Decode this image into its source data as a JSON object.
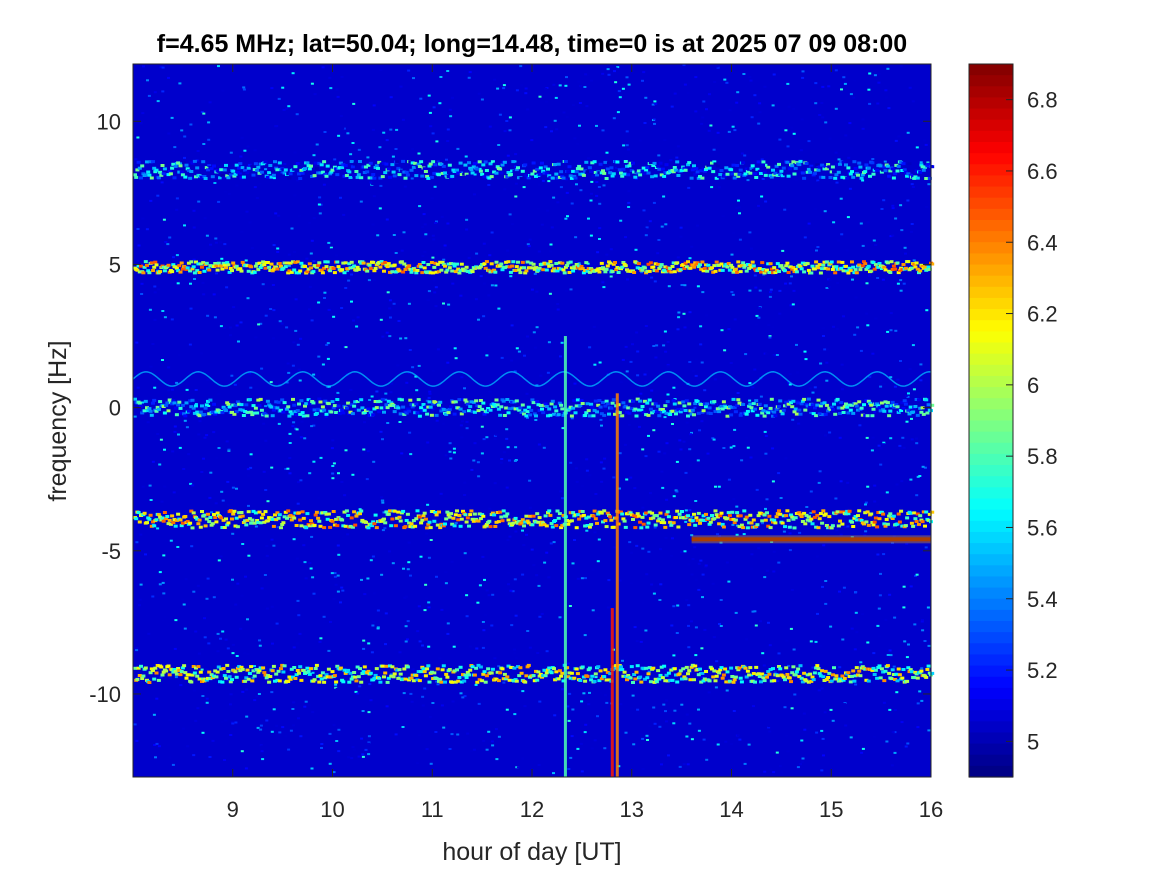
{
  "chart_data": {
    "type": "heatmap",
    "title": "f=4.65 MHz;  lat=50.04; long=14.48, time=0 is at 2025 07 09 08:00",
    "xlabel": "hour of day [UT]",
    "ylabel": "frequency [Hz]",
    "xlim": [
      8.0,
      16.0
    ],
    "ylim": [
      -12.9,
      12.0
    ],
    "x_ticks": [
      9,
      10,
      11,
      12,
      13,
      14,
      15,
      16
    ],
    "x_tick_labels": [
      "9",
      "10",
      "11",
      "12",
      "13",
      "14",
      "15",
      "16"
    ],
    "y_ticks": [
      10,
      5,
      0,
      -5,
      -10
    ],
    "y_tick_labels": [
      "10",
      "5",
      "0",
      "-5",
      "-10"
    ],
    "colorscale": "jet",
    "colorbar": {
      "range": [
        4.9,
        6.9
      ],
      "ticks": [
        6.8,
        6.6,
        6.4,
        6.2,
        6,
        5.8,
        5.6,
        5.4,
        5.2,
        5
      ],
      "tick_labels": [
        "6.8",
        "6.6",
        "6.4",
        "6.2",
        "6",
        "5.8",
        "5.6",
        "5.4",
        "5.2",
        "5"
      ]
    },
    "background_level": 5.05,
    "traces": [
      {
        "freq": 8.3,
        "x_start": 8.0,
        "x_end": 16.0,
        "level": 5.9,
        "wiggle": 0.15
      },
      {
        "freq": 4.9,
        "x_start": 8.0,
        "x_end": 16.0,
        "level": 6.5,
        "wiggle": 0.1
      },
      {
        "freq": 0.0,
        "x_start": 8.0,
        "x_end": 16.0,
        "level": 6.0,
        "wiggle": 0.15
      },
      {
        "freq": -3.9,
        "x_start": 8.0,
        "x_end": 16.0,
        "level": 6.5,
        "wiggle": 0.15
      },
      {
        "freq": -4.6,
        "x_start": 13.6,
        "x_end": 16.0,
        "level": 6.9,
        "wiggle": 0.0
      },
      {
        "freq": -9.3,
        "x_start": 8.0,
        "x_end": 16.0,
        "level": 6.4,
        "wiggle": 0.15
      }
    ],
    "faint_traces": [
      {
        "freq": 1.0,
        "x_start": 8.0,
        "x_end": 16.0,
        "level": 5.5
      }
    ],
    "vertical_streaks": [
      {
        "x": 12.33,
        "f_from": -12.9,
        "f_to": 2.5,
        "level": 5.8
      },
      {
        "x": 12.8,
        "f_from": -12.9,
        "f_to": -7.0,
        "level": 6.6
      },
      {
        "x": 12.85,
        "f_from": -12.9,
        "f_to": 0.5,
        "level": 6.4
      }
    ]
  }
}
